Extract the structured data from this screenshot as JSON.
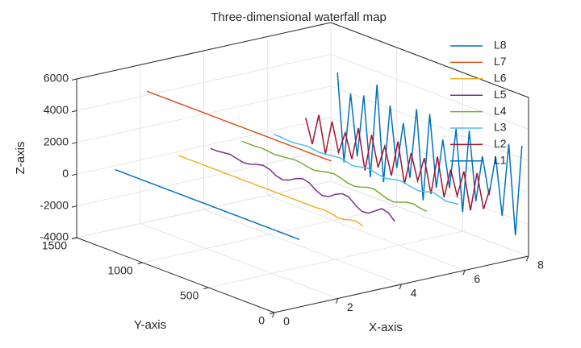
{
  "chart_data": {
    "type": "waterfall3d",
    "title": "Three-dimensional waterfall map",
    "x_label": "X-axis",
    "y_label": "Y-axis",
    "z_label": "Z-axis",
    "xlim": [
      0,
      8
    ],
    "xticks": [
      0,
      2,
      4,
      6,
      8
    ],
    "ylim": [
      0,
      1500
    ],
    "yticks": [
      0,
      500,
      1000,
      1500
    ],
    "zlim": [
      -4000,
      6000
    ],
    "zticks": [
      -4000,
      -2000,
      0,
      2000,
      4000,
      6000
    ],
    "grid": true,
    "legend": "top-right",
    "y": [
      1450,
      1400,
      1350,
      1300,
      1250,
      1200,
      1150,
      1100,
      1050,
      1000,
      950,
      900,
      850,
      800,
      750,
      700,
      650,
      600,
      550,
      500,
      450,
      400,
      350,
      300,
      250,
      200,
      150,
      100,
      50
    ],
    "series": [
      {
        "name": "L8",
        "color": "#0072BD",
        "x": 1,
        "values": [
          0,
          0,
          0,
          0,
          0,
          0,
          0,
          0,
          0,
          0,
          0,
          0,
          0,
          0,
          0,
          0,
          0,
          0,
          0,
          0,
          0,
          0,
          0,
          0,
          0,
          0,
          0,
          0,
          0
        ]
      },
      {
        "name": "L7",
        "color": "#D95319",
        "x": 2,
        "values": [
          4500,
          4500,
          4500,
          4500,
          4500,
          4500,
          4500,
          4500,
          4500,
          4500,
          4500,
          4500,
          4500,
          4500,
          4500,
          4500,
          4500,
          4500,
          4500,
          4500,
          4500,
          4500,
          4500,
          4500,
          4500,
          4500,
          4500,
          4500,
          4500
        ]
      },
      {
        "name": "L6",
        "color": "#EDB120",
        "x": 3,
        "values": [
          0,
          0,
          0,
          0,
          0,
          0,
          0,
          0,
          0,
          0,
          0,
          0,
          0,
          0,
          0,
          0,
          0,
          0,
          0,
          0,
          0,
          0,
          50,
          0,
          -100,
          -100,
          50,
          100,
          -50
        ]
      },
      {
        "name": "L5",
        "color": "#7E2F8E",
        "x": 4,
        "values": [
          0,
          0,
          50,
          100,
          0,
          -100,
          -50,
          100,
          200,
          100,
          -150,
          -250,
          -100,
          150,
          300,
          200,
          -100,
          -300,
          -200,
          100,
          300,
          250,
          -100,
          -350,
          -300,
          0,
          300,
          200,
          -200
        ]
      },
      {
        "name": "L4",
        "color": "#77AC30",
        "x": 5,
        "values": [
          0,
          0,
          0,
          50,
          0,
          -50,
          0,
          50,
          100,
          50,
          -50,
          -100,
          0,
          100,
          150,
          50,
          -100,
          -150,
          -50,
          100,
          150,
          0,
          -150,
          -200,
          -50,
          100,
          150,
          50,
          0
        ]
      },
      {
        "name": "L3",
        "color": "#4DBEEE",
        "x": 6,
        "values": [
          0,
          0,
          -50,
          -50,
          0,
          50,
          0,
          -50,
          0,
          50,
          100,
          0,
          -100,
          0,
          100,
          50,
          -50,
          -100,
          0,
          100,
          50,
          -50,
          -100,
          0,
          150,
          50,
          -100,
          -50,
          0
        ]
      },
      {
        "name": "L2",
        "color": "#A2142F",
        "x": 7,
        "values": [
          600,
          -900,
          1100,
          -1200,
          1000,
          -800,
          600,
          -900,
          1200,
          -1300,
          1100,
          -800,
          700,
          -1000,
          1300,
          -1200,
          900,
          -700,
          900,
          -1200,
          1300,
          -1100,
          800,
          -700,
          1000,
          -1300,
          1200,
          -900,
          600
        ]
      },
      {
        "name": "L1",
        "color": "#0072BD",
        "x": 8,
        "values": [
          3000,
          -2500,
          2000,
          -1800,
          2200,
          -2800,
          3200,
          -2800,
          2200,
          -1600,
          1400,
          -1900,
          2600,
          -3000,
          2600,
          -1900,
          1300,
          -1600,
          2300,
          -2800,
          2500,
          -1800,
          1200,
          -1100,
          1500,
          -2100,
          2600,
          -3000,
          2800
        ]
      }
    ]
  }
}
